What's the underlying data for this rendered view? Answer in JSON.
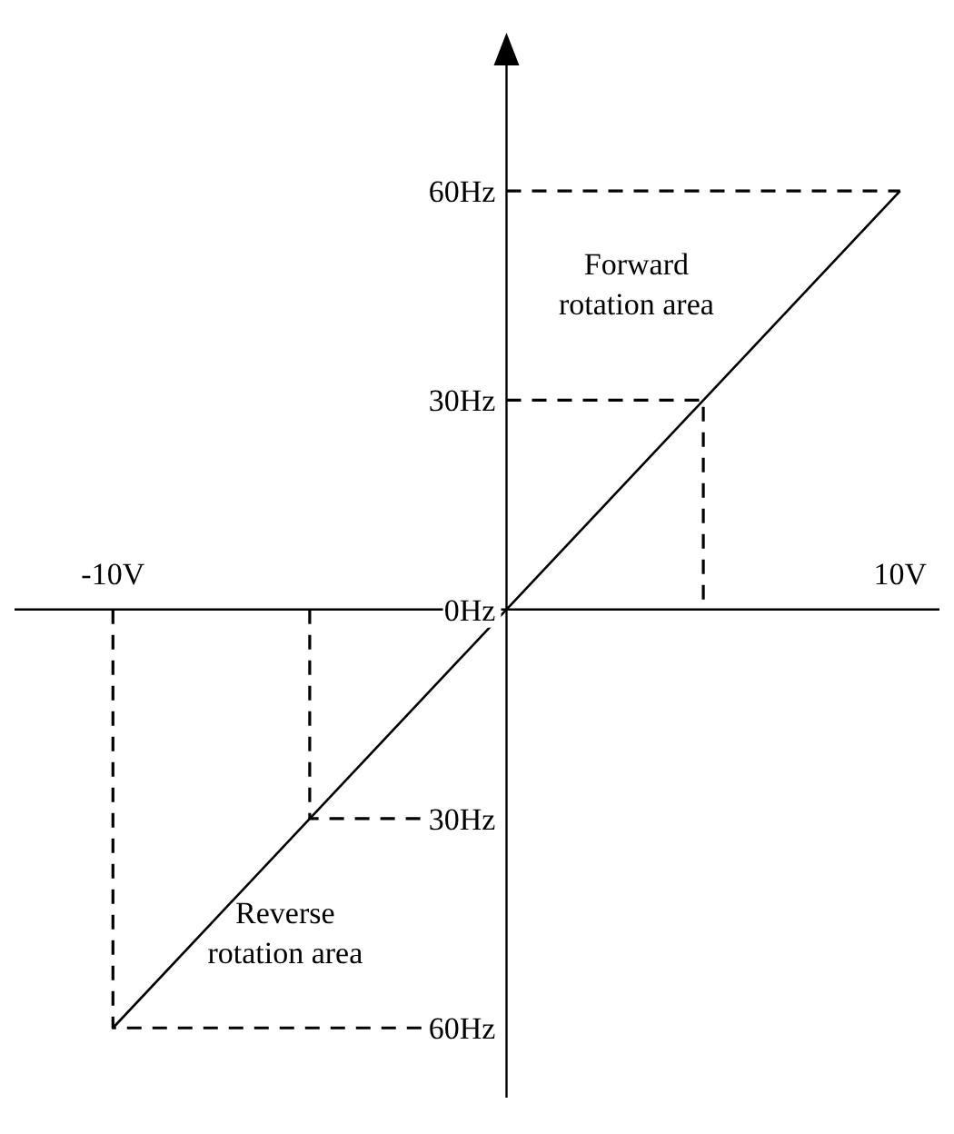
{
  "chart_data": {
    "type": "line",
    "xlim": [
      -12.5,
      11
    ],
    "ylim": [
      -70,
      78
    ],
    "xticks": [
      {
        "value": -10,
        "label": "-10V"
      },
      {
        "value": 10,
        "label": "10V"
      }
    ],
    "yticks": [
      {
        "value": 60,
        "label": "60Hz"
      },
      {
        "value": 30,
        "label": "30Hz"
      },
      {
        "value": 0,
        "label": "0Hz"
      },
      {
        "value": -30,
        "label": "30Hz"
      },
      {
        "value": -60,
        "label": "60Hz"
      }
    ],
    "series": [
      {
        "color": "#000000",
        "x": [
          -10,
          10
        ],
        "values": [
          -60,
          60
        ],
        "line_style": "solid"
      },
      {
        "color": "#000000",
        "x": [
          0,
          10
        ],
        "values": [
          60,
          60
        ],
        "line_style": "dashed"
      },
      {
        "color": "#000000",
        "x": [
          0,
          5,
          5
        ],
        "values": [
          30,
          30,
          0
        ],
        "line_style": "dashed"
      },
      {
        "color": "#000000",
        "x": [
          -5,
          -5,
          0
        ],
        "values": [
          0,
          -30,
          -30
        ],
        "line_style": "dashed"
      },
      {
        "color": "#000000",
        "x": [
          -10,
          -10,
          0
        ],
        "values": [
          0,
          -60,
          -60
        ],
        "line_style": "dashed"
      }
    ],
    "annotations": [
      "Forward rotation area",
      "Reverse rotation area"
    ],
    "grid": false,
    "marker": "none"
  }
}
